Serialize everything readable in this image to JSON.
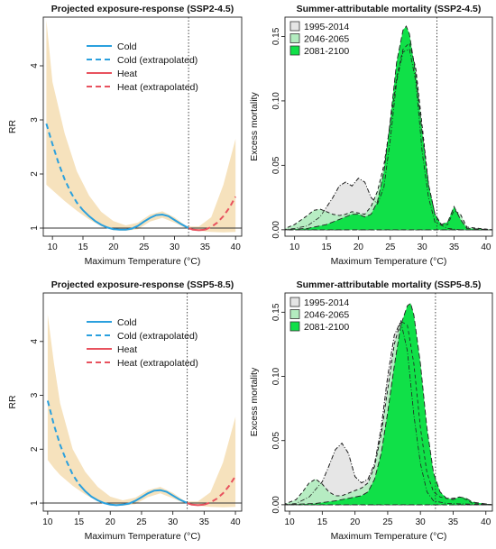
{
  "chart_data": [
    {
      "panel": "top-left",
      "type": "line",
      "title": "Projected exposure-response (SSP2-4.5)",
      "xlabel": "Maximum Temperature (°C)",
      "ylabel": "RR",
      "xlim": [
        8.5,
        41
      ],
      "ylim": [
        0.85,
        4.9
      ],
      "xticks": [
        10,
        15,
        20,
        25,
        30,
        35,
        40
      ],
      "yticks": [
        1,
        2,
        3,
        4
      ],
      "reference_line": 1,
      "threshold_x": 32.3,
      "legend": {
        "position": "top",
        "entries": [
          "Cold",
          "Cold (extrapolated)",
          "Heat",
          "Heat (extrapolated)"
        ]
      },
      "colors": {
        "cold": "#2aa0de",
        "heat": "#e8525e",
        "ci": "#f6e2bd"
      },
      "series": [
        {
          "name": "Cold (extrapolated)",
          "x": [
            9,
            10,
            11,
            12,
            13,
            14,
            15
          ],
          "y": [
            2.93,
            2.55,
            2.2,
            1.9,
            1.66,
            1.47,
            1.33
          ]
        },
        {
          "name": "Cold",
          "x": [
            15,
            16,
            17,
            18,
            19,
            20,
            21,
            22,
            23,
            24,
            25,
            26,
            27,
            28,
            29,
            30,
            31,
            32.3
          ],
          "y": [
            1.33,
            1.22,
            1.13,
            1.06,
            1.01,
            0.98,
            0.97,
            0.97,
            0.99,
            1.04,
            1.12,
            1.19,
            1.24,
            1.25,
            1.22,
            1.15,
            1.08,
            1.0
          ]
        },
        {
          "name": "Heat",
          "x": [
            32.3,
            33,
            34,
            35
          ],
          "y": [
            1.0,
            0.97,
            0.96,
            0.97
          ]
        },
        {
          "name": "Heat (extrapolated)",
          "x": [
            35,
            36,
            37,
            38,
            39,
            40
          ],
          "y": [
            0.97,
            1.02,
            1.1,
            1.22,
            1.38,
            1.58
          ]
        }
      ],
      "ci_band": {
        "x": [
          9,
          10,
          12,
          14,
          16,
          18,
          20,
          22,
          24,
          26,
          28,
          30,
          32,
          34,
          36,
          38,
          40
        ],
        "lower": [
          1.8,
          1.7,
          1.5,
          1.32,
          1.16,
          1.03,
          0.96,
          0.95,
          0.98,
          1.12,
          1.19,
          1.1,
          0.99,
          0.95,
          0.93,
          0.92,
          0.93
        ],
        "upper": [
          4.85,
          3.7,
          2.75,
          2.05,
          1.6,
          1.3,
          1.13,
          1.05,
          1.1,
          1.25,
          1.31,
          1.2,
          1.03,
          1.03,
          1.2,
          1.8,
          2.65
        ]
      }
    },
    {
      "panel": "top-right",
      "type": "area",
      "title": "Summer-attributable mortality (SSP2-4.5)",
      "xlabel": "Maximum Temperature (°C)",
      "ylabel": "Excess mortality",
      "xlim": [
        8.5,
        41
      ],
      "ylim": [
        -0.005,
        0.165
      ],
      "xticks": [
        10,
        15,
        20,
        25,
        30,
        35,
        40
      ],
      "yticks": [
        0.0,
        0.05,
        0.1,
        0.15
      ],
      "ytick_labels": [
        "0.00",
        "0.05",
        "0.10",
        "0.15"
      ],
      "threshold_x": 32.3,
      "legend": {
        "position": "top-left",
        "entries": [
          "1995-2014",
          "2046-2065",
          "2081-2100"
        ]
      },
      "colors": {
        "1995-2014": "#e5e5e5",
        "2046-2065": "#b3ecc0",
        "2081-2100": "#10e048"
      },
      "series": [
        {
          "name": "1995-2014",
          "x": [
            8,
            10,
            12,
            14,
            16,
            17,
            18,
            19,
            20,
            21,
            22,
            23,
            24,
            25,
            26,
            27,
            28,
            29,
            30,
            31,
            32,
            34,
            36,
            41
          ],
          "y": [
            0,
            0.001,
            0.003,
            0.01,
            0.025,
            0.034,
            0.037,
            0.034,
            0.04,
            0.037,
            0.025,
            0.02,
            0.033,
            0.07,
            0.115,
            0.138,
            0.14,
            0.115,
            0.06,
            0.025,
            0.006,
            0.001,
            0,
            0
          ]
        },
        {
          "name": "2046-2065",
          "x": [
            8,
            10,
            12,
            13,
            14,
            15,
            16,
            17,
            18,
            19,
            20,
            21,
            22,
            23,
            24,
            25,
            26,
            27,
            28,
            29,
            30,
            31,
            32,
            33,
            34,
            35,
            36,
            37,
            41
          ],
          "y": [
            0,
            0.004,
            0.011,
            0.015,
            0.016,
            0.014,
            0.012,
            0.011,
            0.012,
            0.014,
            0.013,
            0.012,
            0.018,
            0.03,
            0.05,
            0.082,
            0.118,
            0.14,
            0.145,
            0.125,
            0.08,
            0.035,
            0.012,
            0.004,
            0.004,
            0.015,
            0.012,
            0.002,
            0
          ]
        },
        {
          "name": "2081-2100",
          "x": [
            8,
            12,
            15,
            17,
            19,
            20,
            21,
            22,
            23,
            24,
            25,
            26,
            27,
            27.5,
            28,
            29,
            30,
            31,
            32,
            33,
            34,
            35,
            36,
            37,
            41
          ],
          "y": [
            0,
            0.001,
            0.004,
            0.008,
            0.012,
            0.012,
            0.01,
            0.012,
            0.022,
            0.045,
            0.085,
            0.13,
            0.155,
            0.158,
            0.152,
            0.12,
            0.075,
            0.035,
            0.012,
            0.004,
            0.006,
            0.018,
            0.008,
            0.001,
            0
          ]
        }
      ]
    },
    {
      "panel": "bottom-left",
      "type": "line",
      "title": "Projected exposure-response (SSP5-8.5)",
      "xlabel": "Maximum Temperature (°C)",
      "ylabel": "RR",
      "xlim": [
        9.3,
        41
      ],
      "ylim": [
        0.85,
        4.9
      ],
      "xticks": [
        10,
        15,
        20,
        25,
        30,
        35,
        40
      ],
      "yticks": [
        1,
        2,
        3,
        4
      ],
      "reference_line": 1,
      "threshold_x": 32.3,
      "legend": {
        "position": "top",
        "entries": [
          "Cold",
          "Cold (extrapolated)",
          "Heat",
          "Heat (extrapolated)"
        ]
      },
      "colors": {
        "cold": "#2aa0de",
        "heat": "#e8525e",
        "ci": "#f6e2bd"
      },
      "series": [
        {
          "name": "Cold (extrapolated)",
          "x": [
            10,
            11,
            12,
            13,
            14,
            15
          ],
          "y": [
            2.9,
            2.45,
            2.08,
            1.78,
            1.53,
            1.35
          ]
        },
        {
          "name": "Cold",
          "x": [
            15,
            16,
            17,
            18,
            19,
            20,
            21,
            22,
            23,
            24,
            25,
            26,
            27,
            28,
            29,
            30,
            31,
            32.3
          ],
          "y": [
            1.35,
            1.22,
            1.12,
            1.05,
            1.0,
            0.97,
            0.96,
            0.97,
            0.99,
            1.04,
            1.11,
            1.18,
            1.23,
            1.24,
            1.21,
            1.14,
            1.07,
            1.0
          ]
        },
        {
          "name": "Heat",
          "x": [
            32.3,
            33,
            34,
            35
          ],
          "y": [
            1.0,
            0.97,
            0.96,
            0.97
          ]
        },
        {
          "name": "Heat (extrapolated)",
          "x": [
            35,
            36,
            37,
            38,
            39,
            40
          ],
          "y": [
            0.97,
            1.01,
            1.08,
            1.18,
            1.32,
            1.5
          ]
        }
      ],
      "ci_band": {
        "x": [
          10,
          11,
          12,
          14,
          16,
          18,
          20,
          22,
          24,
          26,
          28,
          30,
          32,
          34,
          36,
          38,
          40
        ],
        "lower": [
          1.8,
          1.65,
          1.52,
          1.32,
          1.16,
          1.03,
          0.96,
          0.95,
          0.98,
          1.11,
          1.18,
          1.09,
          0.99,
          0.95,
          0.93,
          0.92,
          0.93
        ],
        "upper": [
          4.5,
          3.6,
          2.85,
          2.0,
          1.58,
          1.3,
          1.12,
          1.05,
          1.1,
          1.24,
          1.3,
          1.19,
          1.03,
          1.03,
          1.2,
          1.75,
          2.6
        ]
      }
    },
    {
      "panel": "bottom-right",
      "type": "area",
      "title": "Summer-attributable mortality (SSP5-8.5)",
      "xlabel": "Maximum Temperature (°C)",
      "ylabel": "Excess mortality",
      "xlim": [
        9.3,
        41
      ],
      "ylim": [
        -0.005,
        0.165
      ],
      "xticks": [
        10,
        15,
        20,
        25,
        30,
        35,
        40
      ],
      "yticks": [
        0.0,
        0.05,
        0.1,
        0.15
      ],
      "ytick_labels": [
        "0.00",
        "0.05",
        "0.10",
        "0.15"
      ],
      "threshold_x": 32.3,
      "legend": {
        "position": "top-left",
        "entries": [
          "1995-2014",
          "2046-2065",
          "2081-2100"
        ]
      },
      "colors": {
        "1995-2014": "#e5e5e5",
        "2046-2065": "#b3ecc0",
        "2081-2100": "#10e048"
      },
      "series": [
        {
          "name": "1995-2014",
          "x": [
            9,
            11,
            13,
            15,
            16,
            17,
            18,
            19,
            20,
            21,
            22,
            23,
            24,
            25,
            26,
            27,
            28,
            29,
            30,
            31,
            32,
            34,
            41
          ],
          "y": [
            0,
            0.001,
            0.006,
            0.018,
            0.03,
            0.043,
            0.048,
            0.04,
            0.022,
            0.017,
            0.02,
            0.032,
            0.06,
            0.1,
            0.132,
            0.143,
            0.12,
            0.07,
            0.032,
            0.01,
            0.003,
            0.001,
            0
          ]
        },
        {
          "name": "2046-2065",
          "x": [
            9,
            11,
            12,
            13,
            14,
            15,
            16,
            17,
            18,
            19,
            20,
            21,
            22,
            23,
            24,
            25,
            26,
            27,
            28,
            29,
            30,
            31,
            32,
            33,
            34,
            35,
            36,
            37,
            38,
            41
          ],
          "y": [
            0,
            0.004,
            0.01,
            0.017,
            0.02,
            0.016,
            0.01,
            0.007,
            0.007,
            0.009,
            0.011,
            0.013,
            0.017,
            0.03,
            0.055,
            0.09,
            0.125,
            0.143,
            0.14,
            0.11,
            0.06,
            0.025,
            0.01,
            0.006,
            0.005,
            0.005,
            0.006,
            0.004,
            0.001,
            0
          ]
        },
        {
          "name": "2081-2100",
          "x": [
            9,
            14,
            17,
            19,
            21,
            22,
            23,
            24,
            25,
            26,
            27,
            28,
            28.5,
            29,
            30,
            31,
            32,
            33,
            34,
            35,
            36,
            37,
            38,
            41
          ],
          "y": [
            0,
            0.001,
            0.003,
            0.005,
            0.007,
            0.01,
            0.02,
            0.04,
            0.072,
            0.108,
            0.14,
            0.155,
            0.157,
            0.148,
            0.11,
            0.06,
            0.025,
            0.01,
            0.005,
            0.004,
            0.006,
            0.005,
            0.002,
            0
          ]
        }
      ]
    }
  ]
}
